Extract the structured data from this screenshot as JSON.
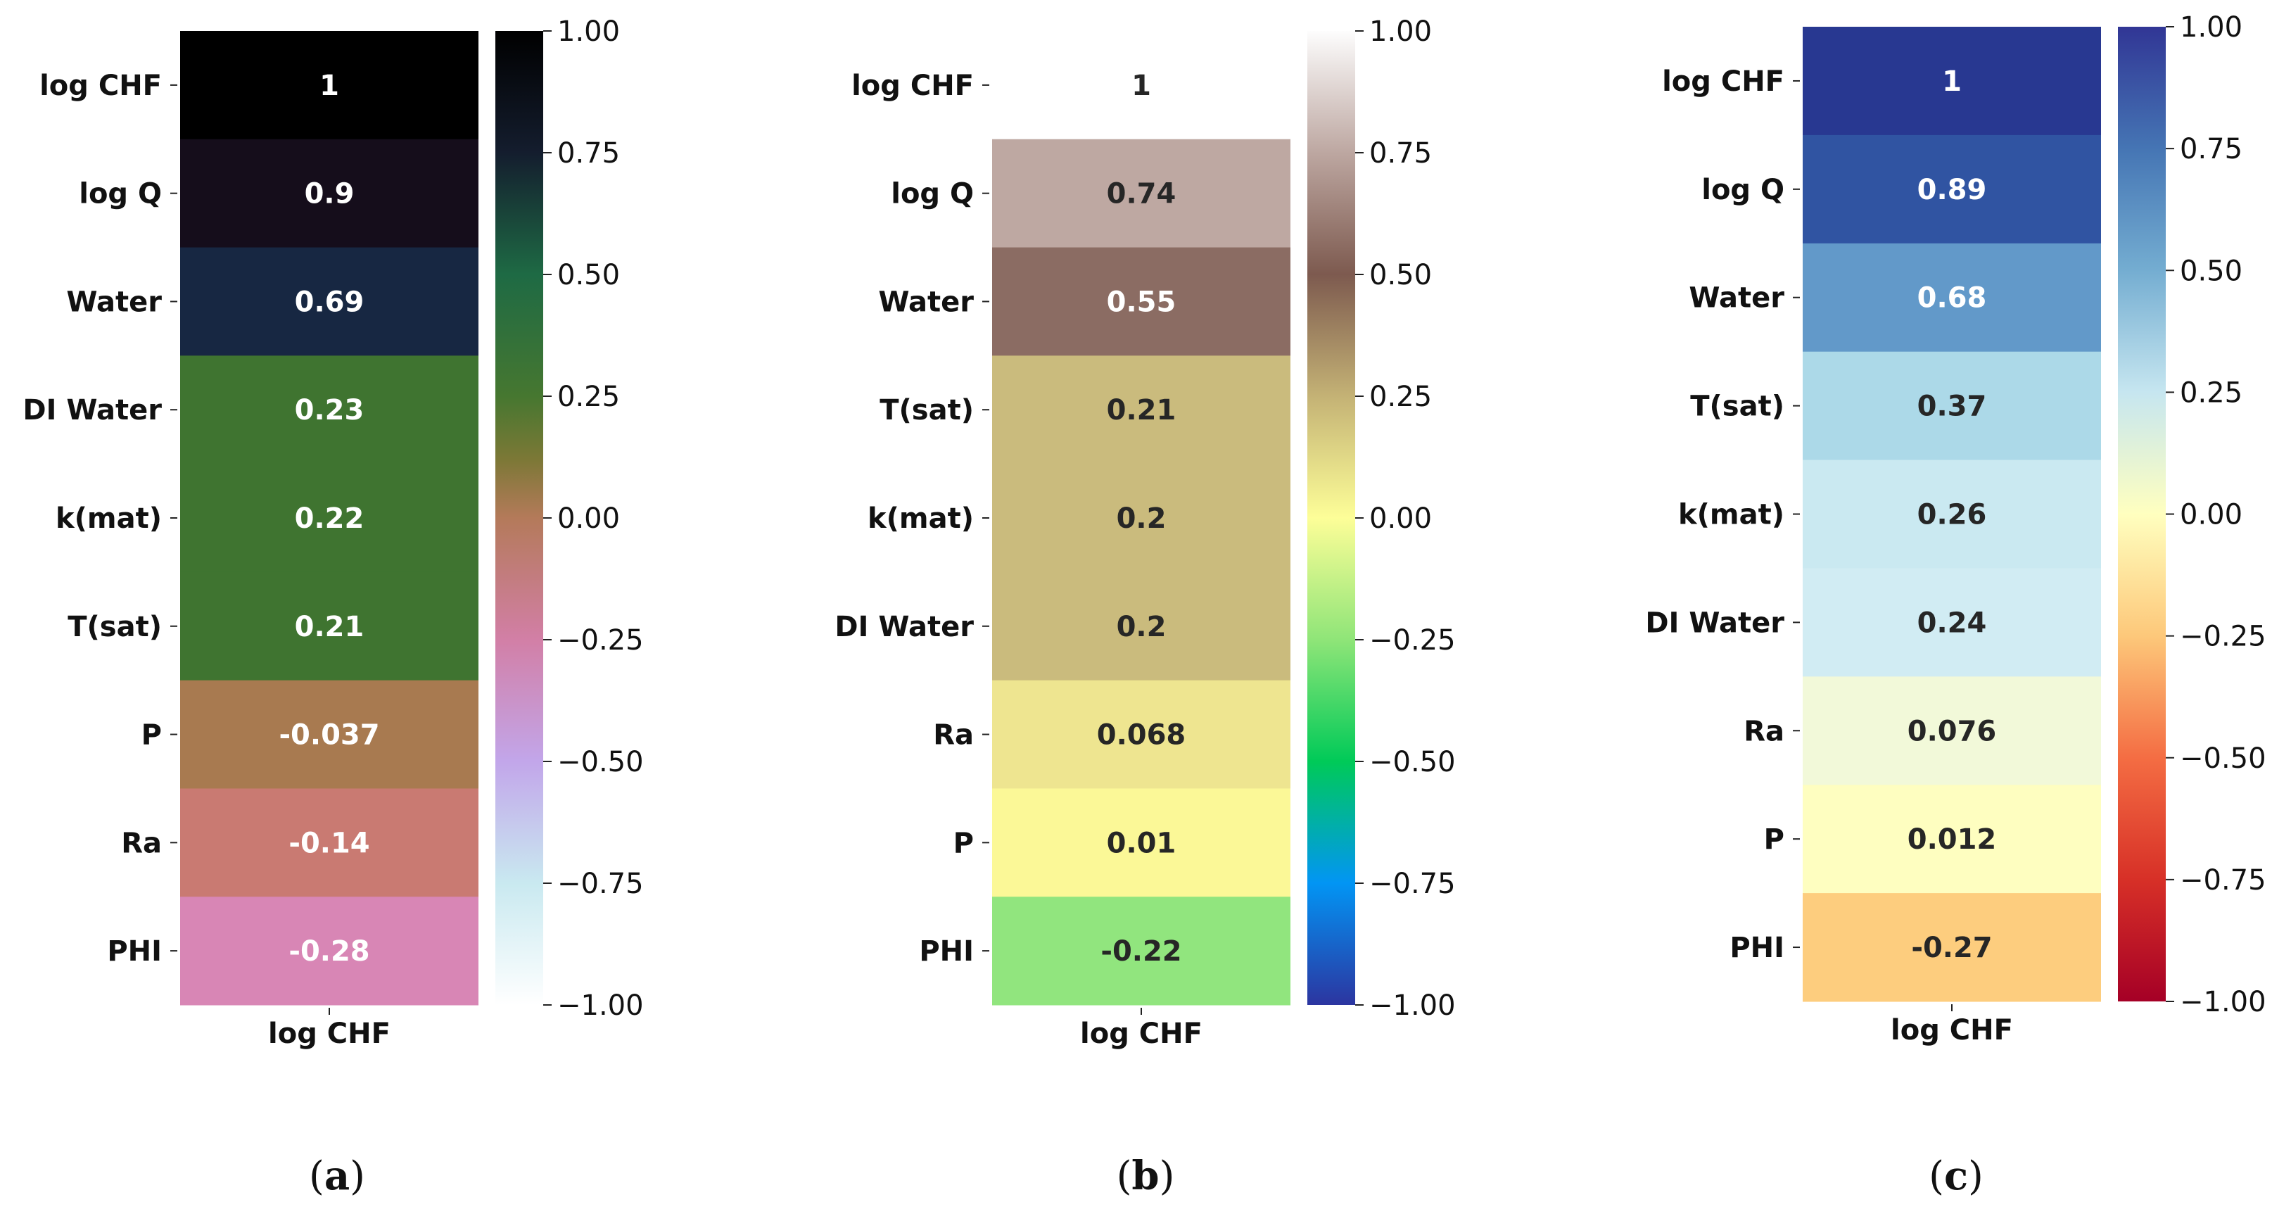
{
  "chart_data": [
    {
      "type": "heatmap",
      "panel_label": "a",
      "column_label": "log CHF",
      "rows": [
        {
          "label": "log CHF",
          "value": 1,
          "display": "1",
          "color": "#000000",
          "text_color": "#ffffff"
        },
        {
          "label": "log Q",
          "value": 0.9,
          "display": "0.9",
          "color": "#150d1b",
          "text_color": "#ffffff"
        },
        {
          "label": "Water",
          "value": 0.69,
          "display": "0.69",
          "color": "#172742",
          "text_color": "#ffffff"
        },
        {
          "label": "DI Water",
          "value": 0.23,
          "display": "0.23",
          "color": "#3f7430",
          "text_color": "#ffffff"
        },
        {
          "label": "k(mat)",
          "value": 0.22,
          "display": "0.22",
          "color": "#3f7430",
          "text_color": "#ffffff"
        },
        {
          "label": "T(sat)",
          "value": 0.21,
          "display": "0.21",
          "color": "#3f7430",
          "text_color": "#ffffff"
        },
        {
          "label": "P",
          "value": -0.037,
          "display": "-0.037",
          "color": "#a87a50",
          "text_color": "#ffffff"
        },
        {
          "label": "Ra",
          "value": -0.14,
          "display": "-0.14",
          "color": "#c97a72",
          "text_color": "#ffffff"
        },
        {
          "label": "PHI",
          "value": -0.28,
          "display": "-0.28",
          "color": "#d886b5",
          "text_color": "#ffffff"
        }
      ],
      "colorbar": {
        "ticks": [
          "1.00",
          "0.75",
          "0.50",
          "0.25",
          "0.00",
          "−0.25",
          "−0.50",
          "−0.75",
          "−1.00"
        ],
        "tick_values": [
          1,
          0.75,
          0.5,
          0.25,
          0,
          -0.25,
          -0.5,
          -0.75,
          -1
        ],
        "range": [
          -1,
          1
        ],
        "stops": [
          {
            "value": 1.0,
            "color": "#000000"
          },
          {
            "value": 0.75,
            "color": "#141d2e"
          },
          {
            "value": 0.5,
            "color": "#1e6a44"
          },
          {
            "value": 0.25,
            "color": "#467730"
          },
          {
            "value": 0.12,
            "color": "#7c7836"
          },
          {
            "value": 0.0,
            "color": "#b47a5a"
          },
          {
            "value": -0.25,
            "color": "#d27fa6"
          },
          {
            "value": -0.5,
            "color": "#c2a6ea"
          },
          {
            "value": -0.75,
            "color": "#c9e9f0"
          },
          {
            "value": -1.0,
            "color": "#ffffff"
          }
        ]
      }
    },
    {
      "type": "heatmap",
      "panel_label": "b",
      "column_label": "log CHF",
      "rows": [
        {
          "label": "log CHF",
          "value": 1,
          "display": "1",
          "color": "#ffffff",
          "text_color": "#262626"
        },
        {
          "label": "log Q",
          "value": 0.74,
          "display": "0.74",
          "color": "#bea8a2",
          "text_color": "#262626"
        },
        {
          "label": "Water",
          "value": 0.55,
          "display": "0.55",
          "color": "#8b6c63",
          "text_color": "#ffffff"
        },
        {
          "label": "T(sat)",
          "value": 0.21,
          "display": "0.21",
          "color": "#cabb7d",
          "text_color": "#262626"
        },
        {
          "label": "k(mat)",
          "value": 0.2,
          "display": "0.2",
          "color": "#cabb7d",
          "text_color": "#262626"
        },
        {
          "label": "DI Water",
          "value": 0.2,
          "display": "0.2",
          "color": "#cabb7d",
          "text_color": "#262626"
        },
        {
          "label": "Ra",
          "value": 0.068,
          "display": "0.068",
          "color": "#eee590",
          "text_color": "#262626"
        },
        {
          "label": "P",
          "value": 0.01,
          "display": "0.01",
          "color": "#fbf897",
          "text_color": "#262626"
        },
        {
          "label": "PHI",
          "value": -0.22,
          "display": "-0.22",
          "color": "#91e57e",
          "text_color": "#262626"
        }
      ],
      "colorbar": {
        "ticks": [
          "1.00",
          "0.75",
          "0.50",
          "0.25",
          "0.00",
          "−0.25",
          "−0.50",
          "−0.75",
          "−1.00"
        ],
        "tick_values": [
          1,
          0.75,
          0.5,
          0.25,
          0,
          -0.25,
          -0.5,
          -0.75,
          -1
        ],
        "range": [
          -1,
          1
        ],
        "stops": [
          {
            "value": 1.0,
            "color": "#fdfdfd"
          },
          {
            "value": 0.75,
            "color": "#bda7a1"
          },
          {
            "value": 0.5,
            "color": "#7d5a4f"
          },
          {
            "value": 0.25,
            "color": "#c4b275"
          },
          {
            "value": 0.0,
            "color": "#fdfe98"
          },
          {
            "value": -0.25,
            "color": "#8fe578"
          },
          {
            "value": -0.5,
            "color": "#00ca58"
          },
          {
            "value": -0.75,
            "color": "#0295f4"
          },
          {
            "value": -1.0,
            "color": "#2c35a0"
          }
        ]
      }
    },
    {
      "type": "heatmap",
      "panel_label": "c",
      "column_label": "log CHF",
      "rows": [
        {
          "label": "log CHF",
          "value": 1,
          "display": "1",
          "color": "#283891",
          "text_color": "#ffffff"
        },
        {
          "label": "log Q",
          "value": 0.89,
          "display": "0.89",
          "color": "#3054a2",
          "text_color": "#ffffff"
        },
        {
          "label": "Water",
          "value": 0.68,
          "display": "0.68",
          "color": "#6299c9",
          "text_color": "#ffffff"
        },
        {
          "label": "T(sat)",
          "value": 0.37,
          "display": "0.37",
          "color": "#acd9e8",
          "text_color": "#262626"
        },
        {
          "label": "k(mat)",
          "value": 0.26,
          "display": "0.26",
          "color": "#cae9f1",
          "text_color": "#262626"
        },
        {
          "label": "DI Water",
          "value": 0.24,
          "display": "0.24",
          "color": "#d1ecf3",
          "text_color": "#262626"
        },
        {
          "label": "Ra",
          "value": 0.076,
          "display": "0.076",
          "color": "#f2f9d9",
          "text_color": "#262626"
        },
        {
          "label": "P",
          "value": 0.012,
          "display": "0.012",
          "color": "#fefec0",
          "text_color": "#262626"
        },
        {
          "label": "PHI",
          "value": -0.27,
          "display": "-0.27",
          "color": "#fdcd7e",
          "text_color": "#262626"
        }
      ],
      "colorbar": {
        "ticks": [
          "1.00",
          "0.75",
          "0.50",
          "0.25",
          "0.00",
          "−0.25",
          "−0.50",
          "−0.75",
          "−1.00"
        ],
        "tick_values": [
          1,
          0.75,
          0.5,
          0.25,
          0,
          -0.25,
          -0.5,
          -0.75,
          -1
        ],
        "range": [
          -1,
          1
        ],
        "stops": [
          {
            "value": 1.0,
            "color": "#313695"
          },
          {
            "value": 0.75,
            "color": "#4575b4"
          },
          {
            "value": 0.5,
            "color": "#74add1"
          },
          {
            "value": 0.25,
            "color": "#c6e6f0"
          },
          {
            "value": 0.0,
            "color": "#ffffbf"
          },
          {
            "value": -0.25,
            "color": "#fdc87a"
          },
          {
            "value": -0.5,
            "color": "#f46d43"
          },
          {
            "value": -0.75,
            "color": "#d73027"
          },
          {
            "value": -1.0,
            "color": "#a50026"
          }
        ]
      }
    }
  ]
}
